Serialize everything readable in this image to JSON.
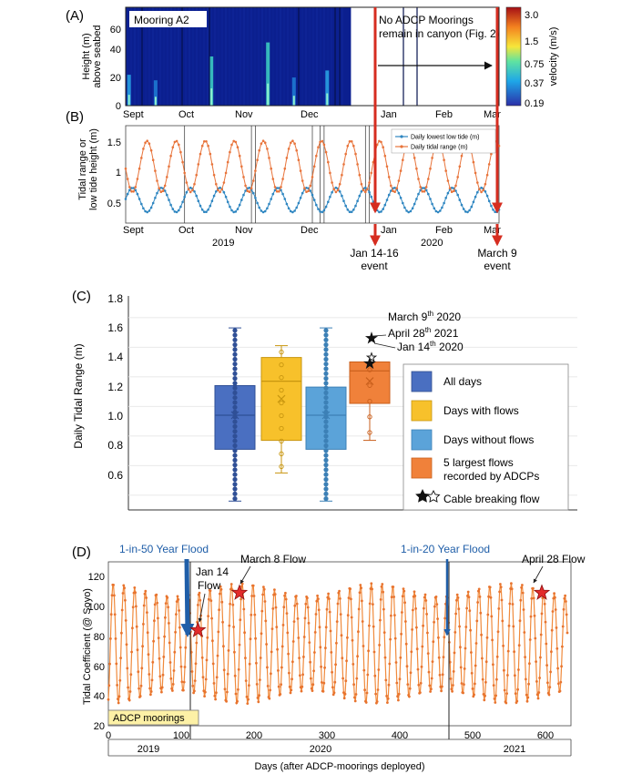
{
  "panels": {
    "a": {
      "letter": "(A)",
      "mooring_label": "Mooring A2",
      "ylabel_line1": "Height (m)",
      "ylabel_line2": "above seabed",
      "yticks": [
        "0",
        "20",
        "40",
        "60"
      ],
      "months": [
        "Sept",
        "Oct",
        "Nov",
        "Dec",
        "Jan",
        "Feb",
        "Mar"
      ],
      "annotation_line1": "No ADCP Moorings",
      "annotation_line2": "remain in canyon (Fig. 2)",
      "colorbar_label": "velocity (m/s)",
      "colorbar_ticks": [
        "3.0",
        "1.5",
        "0.75",
        "0.37",
        "0.19"
      ],
      "colors": {
        "background": "#0b1f8f",
        "event": "#d62d20"
      }
    },
    "b": {
      "letter": "(B)",
      "ylabel_line1": "Tidal range or",
      "ylabel_line2": "low tide height (m)",
      "yticks": [
        "0.5",
        "1",
        "1.5"
      ],
      "months": [
        "Sept",
        "Oct",
        "Nov",
        "Dec",
        "Jan",
        "Feb",
        "Mar"
      ],
      "year_labels": [
        "2019",
        "2020"
      ],
      "legend": [
        "Daily lowest low tide (m)",
        "Daily tidal range (m)"
      ],
      "event1_line1": "Jan 14-16",
      "event1_line2": "event",
      "event2_line1": "March 9",
      "event2_line2": "event",
      "colors": {
        "range": "#e8743b",
        "lowtide": "#2e86c1"
      }
    },
    "c": {
      "letter": "(C)",
      "ylabel": "Daily Tidal Range (m)",
      "yticks": [
        "0.6",
        "0.8",
        "1.0",
        "1.2",
        "1.4",
        "1.6",
        "1.8"
      ],
      "annotations": {
        "march": {
          "base": "March 9",
          "sup": "th",
          "rest": " 2020"
        },
        "april": {
          "base": "April 28",
          "sup": "th",
          "rest": " 2021"
        },
        "jan": {
          "base": "Jan 14",
          "sup": "th",
          "rest": " 2020"
        }
      },
      "legend": [
        "All days",
        "Days with flows",
        "Days without flows",
        "5 largest flows",
        "recorded by ADCPs",
        "Cable breaking flow"
      ]
    },
    "d": {
      "letter": "(D)",
      "ylabel": "Tidal Coefficient (@ Soyo)",
      "xlabel": "Days (after ADCP-moorings deployed)",
      "yticks": [
        "20",
        "40",
        "60",
        "80",
        "100",
        "120"
      ],
      "xticks": [
        "0",
        "100",
        "200",
        "300",
        "400",
        "500",
        "600"
      ],
      "years": [
        "2019",
        "2020",
        "2021"
      ],
      "flood1": "1-in-50 Year Flood",
      "flood2": "1-in-20 Year Flood",
      "jan14_line1": "Jan 14",
      "jan14_line2": "Flow",
      "march8": "March 8 Flow",
      "april28": "April 28 Flow",
      "adcp_box": "ADCP moorings"
    }
  },
  "chart_data": [
    {
      "id": "A",
      "type": "heatmap",
      "title": "",
      "ylabel": "Height (m) above seabed",
      "colorbar_label": "velocity (m/s)",
      "color_scale": "log",
      "colorbar_ticks": [
        3.0,
        1.5,
        0.75,
        0.37,
        0.19
      ],
      "ylim": [
        0,
        70
      ],
      "x_range_months": [
        "Sept",
        "Mar"
      ],
      "data_until_month_fraction": 3.99,
      "high_velocity_events": [
        {
          "month_position": 0.06,
          "height_top_m": 22,
          "velocity": 1.0
        },
        {
          "month_position": 0.53,
          "height_top_m": 18,
          "velocity": 0.8
        },
        {
          "month_position": 1.52,
          "height_top_m": 35,
          "velocity": 1.5
        },
        {
          "month_position": 2.52,
          "height_top_m": 45,
          "velocity": 2.0
        },
        {
          "month_position": 2.98,
          "height_top_m": 20,
          "velocity": 0.9
        },
        {
          "month_position": 3.57,
          "height_top_m": 25,
          "velocity": 1.2
        }
      ]
    },
    {
      "id": "B",
      "type": "line",
      "xlabel": "",
      "ylabel": "Tidal range or low tide height (m)",
      "ylim": [
        0.2,
        1.8
      ],
      "x_range_days": [
        0,
        190
      ],
      "month_starts_days": [
        0,
        30,
        61,
        91,
        122,
        153,
        182
      ],
      "series": [
        {
          "name": "Daily lowest low tide (m)",
          "mean": 0.58,
          "amplitude": 0.2,
          "period_days": 14.8,
          "phase_days": 3.5
        },
        {
          "name": "Daily tidal range (m)",
          "mean": 1.13,
          "amplitude": 0.42,
          "period_days": 14.8,
          "phase_days": 10.9
        }
      ],
      "events_days": [
        {
          "label": "Jan 14-16 event",
          "day": 136
        },
        {
          "label": "March 9 event",
          "day": 190
        }
      ]
    },
    {
      "id": "C",
      "type": "box",
      "ylabel": "Daily Tidal Range (m)",
      "ylim": [
        0.5,
        1.8
      ],
      "groups": [
        {
          "name": "All days",
          "min": 0.56,
          "q1": 0.91,
          "median": 1.14,
          "mean": 1.14,
          "q3": 1.34,
          "max": 1.73,
          "color": "#4a6fc1"
        },
        {
          "name": "Days with flows",
          "min": 0.75,
          "q1": 0.97,
          "median": 1.37,
          "mean": 1.25,
          "q3": 1.53,
          "max": 1.61,
          "color": "#f7c12b"
        },
        {
          "name": "Days without flows",
          "min": 0.56,
          "q1": 0.91,
          "median": 1.14,
          "mean": 1.14,
          "q3": 1.33,
          "max": 1.73,
          "color": "#5ba3d9"
        },
        {
          "name": "5 largest flows recorded by ADCPs",
          "min": 0.97,
          "q1": 1.22,
          "median": 1.44,
          "mean": 1.37,
          "q3": 1.5,
          "max": 1.5,
          "color": "#f0813a"
        }
      ],
      "cable_breaking_flows": [
        {
          "label": "March 9th 2020",
          "value": 1.66,
          "filled": true
        },
        {
          "label": "April 28th 2021",
          "value": 1.53,
          "filled": false
        },
        {
          "label": "Jan 14th 2020",
          "value": 1.49,
          "filled": true
        }
      ]
    },
    {
      "id": "D",
      "type": "line",
      "xlabel": "Days (after ADCP-moorings deployed)",
      "ylabel": "Tidal Coefficient (@ Soyo)",
      "xlim": [
        0,
        630
      ],
      "ylim": [
        20,
        130
      ],
      "series": [
        {
          "name": "",
          "mean": 75,
          "amplitude": 36,
          "period_days": 14.77,
          "phase_days": 6.5
        }
      ],
      "flows": [
        {
          "label": "Jan 14 Flow",
          "day": 123,
          "value": 84
        },
        {
          "label": "March 8 Flow",
          "day": 180,
          "value": 109
        },
        {
          "label": "April 28 Flow",
          "day": 595,
          "value": 109
        }
      ],
      "floods": [
        {
          "label": "1-in-50 Year Flood",
          "day": 116
        },
        {
          "label": "1-in-20 Year Flood",
          "day": 478
        }
      ],
      "adcp_period_days": [
        0,
        123
      ],
      "year_boundaries_days": [
        123,
        480
      ]
    }
  ]
}
